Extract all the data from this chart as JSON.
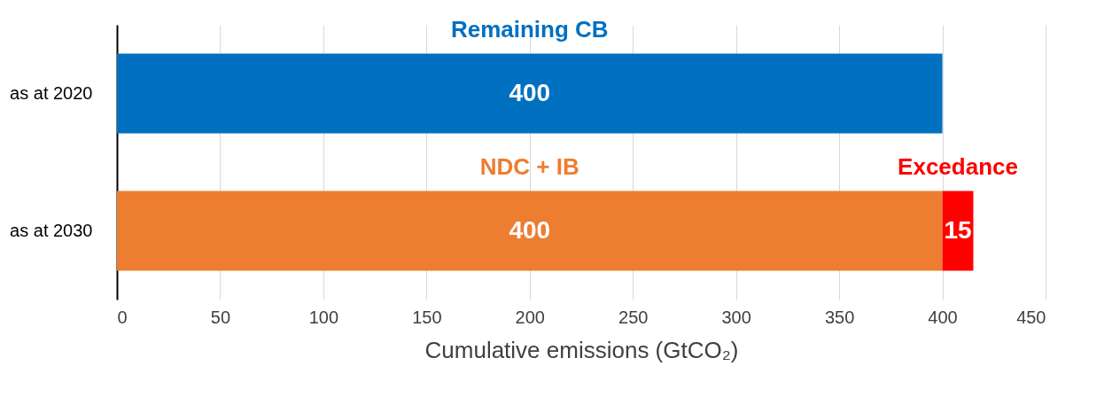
{
  "chart_data": {
    "type": "bar",
    "orientation": "horizontal",
    "stacked": true,
    "categories": [
      "as at 2020",
      "as at 2030"
    ],
    "series": [
      {
        "name": "Remaining CB",
        "color": "#0070c0",
        "values": [
          400,
          null
        ]
      },
      {
        "name": "NDC + IB",
        "color": "#ed7d31",
        "values": [
          null,
          400
        ]
      },
      {
        "name": "Excedance",
        "color": "#ff0000",
        "values": [
          null,
          15
        ]
      }
    ],
    "xlabel": "Cumulative emissions (GtCO₂)",
    "xlim": [
      0,
      450
    ],
    "xticks": [
      0,
      50,
      100,
      150,
      200,
      250,
      300,
      350,
      400,
      450
    ],
    "grid": "x",
    "legend": false,
    "data_labels": true
  }
}
